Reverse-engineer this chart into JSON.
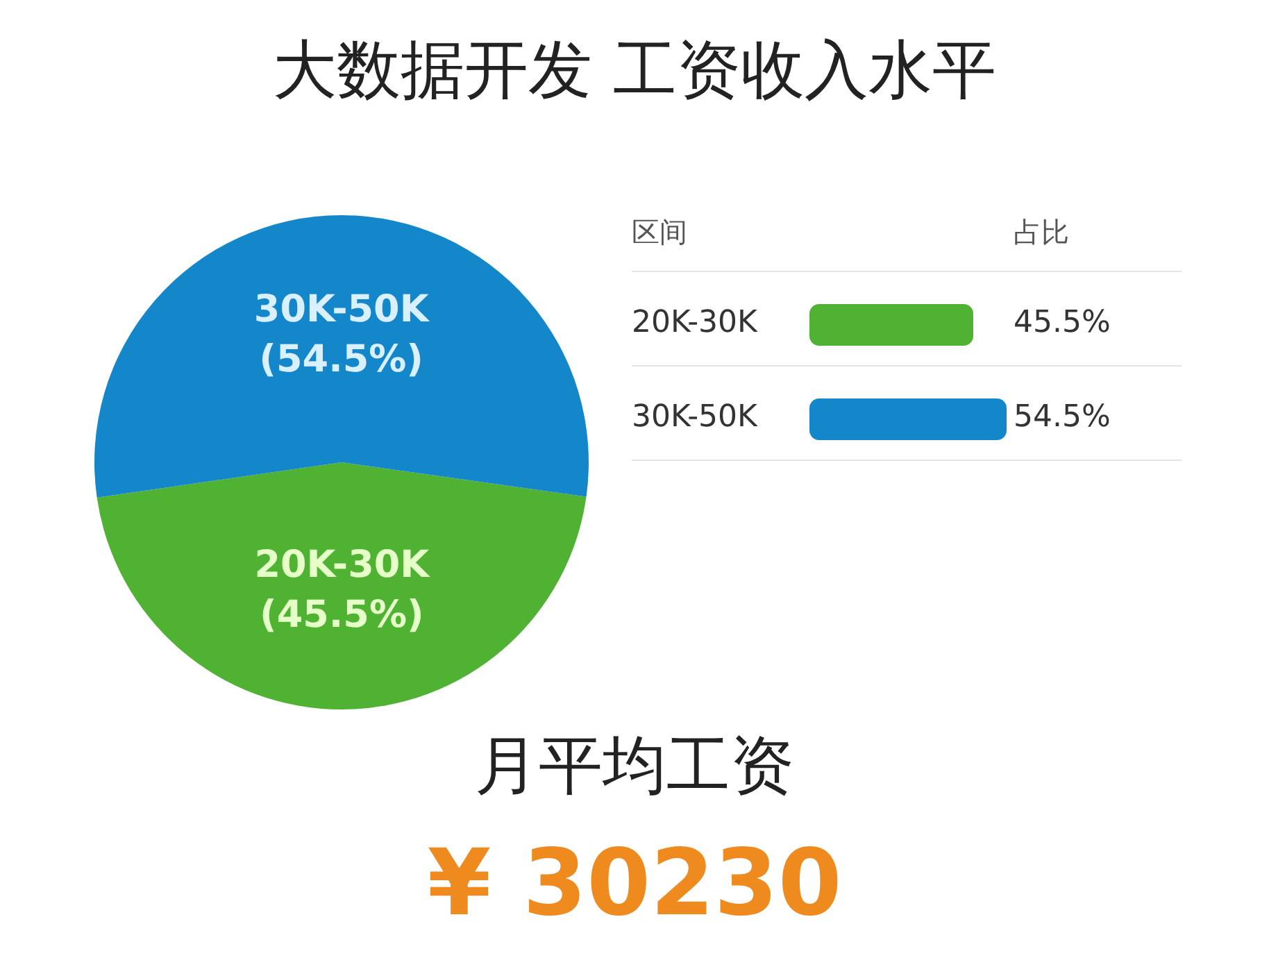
{
  "chart_data": {
    "type": "pie",
    "title": "大数据开发 工资收入水平",
    "categories": [
      "20K-30K",
      "30K-50K"
    ],
    "values": [
      45.5,
      54.5
    ],
    "value_labels": [
      "(45.5%)",
      "(54.5%)"
    ],
    "colors": [
      "#4fb233",
      "#1387c9"
    ],
    "annotations": [
      "区间",
      "占比",
      "45.5%",
      "54.5%",
      "月平均工资",
      "¥ 30230"
    ]
  }
}
